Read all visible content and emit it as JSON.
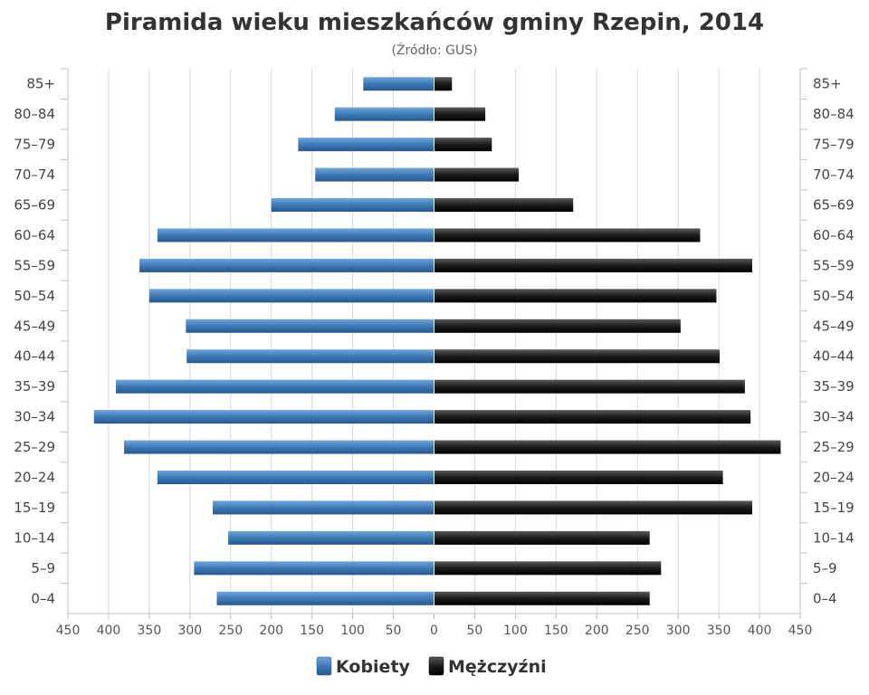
{
  "colors": {
    "women": "#3d7ab8",
    "men": "#1c1c1c",
    "grid": "#d9d9d9"
  },
  "chart_data": {
    "type": "bar",
    "orientation": "horizontal-pyramid",
    "title": "Piramida wieku mieszkańców gminy Rzepin, 2014",
    "subtitle": "(Źródło: GUS)",
    "categories": [
      "85+",
      "80–84",
      "75–79",
      "70–74",
      "65–69",
      "60–64",
      "55–59",
      "50–54",
      "45–49",
      "40–44",
      "35–39",
      "30–34",
      "25–29",
      "20–24",
      "15–19",
      "10–14",
      "5–9",
      "0–4"
    ],
    "series": [
      {
        "name": "Kobiety",
        "side": "left",
        "values": [
          87,
          122,
          167,
          146,
          200,
          340,
          362,
          350,
          305,
          304,
          391,
          418,
          381,
          340,
          272,
          253,
          295,
          267
        ]
      },
      {
        "name": "Mężczyźni",
        "side": "right",
        "values": [
          22,
          63,
          71,
          104,
          171,
          327,
          391,
          347,
          303,
          351,
          382,
          389,
          426,
          355,
          391,
          265,
          279,
          265
        ]
      }
    ],
    "xlim": [
      -450,
      450
    ],
    "xticks": [
      "450",
      "400",
      "350",
      "300",
      "250",
      "200",
      "150",
      "100",
      "50",
      "0",
      "50",
      "100",
      "150",
      "200",
      "250",
      "300",
      "350",
      "400",
      "450"
    ],
    "legend": "bottom-center",
    "grid": true
  }
}
